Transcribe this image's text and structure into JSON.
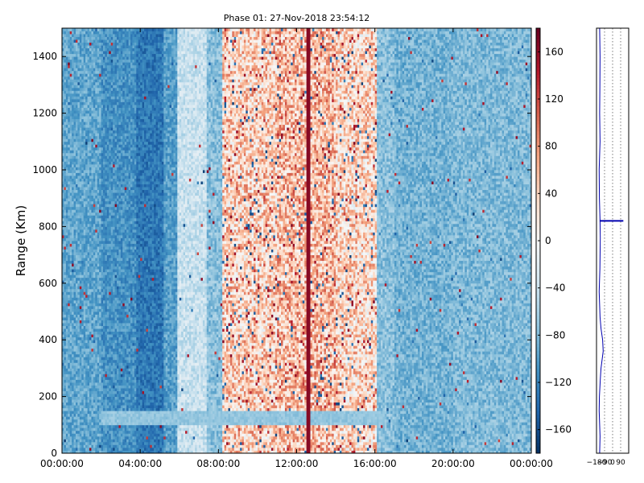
{
  "chart_data": [
    {
      "type": "heatmap",
      "title": "Phase 01: 27-Nov-2018 23:54:12",
      "xlabel": "",
      "ylabel": "Range (Km)",
      "x_tick_labels": [
        "00:00:00",
        "04:00:00",
        "08:00:00",
        "12:00:00",
        "16:00:00",
        "20:00:00",
        "00:00:00"
      ],
      "x_hours": [
        0,
        4,
        8,
        12,
        16,
        20,
        24
      ],
      "xlim_hours": [
        0,
        24
      ],
      "y_ticks": [
        0,
        200,
        400,
        600,
        800,
        1000,
        1200,
        1400
      ],
      "ylim": [
        0,
        1500
      ],
      "color_limits": [
        -180,
        180
      ],
      "colormap": "RdBu_r",
      "colorbar_ticks": [
        -160,
        -120,
        -80,
        -40,
        0,
        40,
        80,
        120,
        160
      ],
      "phase_profile_hours": [
        {
          "start": 0,
          "end": 2,
          "mean": -95
        },
        {
          "start": 2,
          "end": 3.8,
          "mean": -110
        },
        {
          "start": 3.8,
          "end": 5.2,
          "mean": -130
        },
        {
          "start": 5.2,
          "end": 5.9,
          "mean": -100
        },
        {
          "start": 5.9,
          "end": 7.4,
          "mean": -40
        },
        {
          "start": 7.4,
          "end": 8.2,
          "mean": -75
        },
        {
          "start": 8.2,
          "end": 11,
          "mean": 40
        },
        {
          "start": 11,
          "end": 14,
          "mean": 55
        },
        {
          "start": 14,
          "end": 16.1,
          "mean": 35
        },
        {
          "start": 16.1,
          "end": 17,
          "mean": -75
        },
        {
          "start": 17,
          "end": 20,
          "mean": -85
        },
        {
          "start": 20,
          "end": 24,
          "mean": -80
        }
      ],
      "hot_line_hours": 12.6,
      "horizontal_band": {
        "range_km": [
          100,
          150
        ],
        "hours": [
          2,
          16.5
        ],
        "mean": -70
      }
    },
    {
      "type": "line",
      "title": "",
      "xlabel": "",
      "ylabel": "",
      "x_tick_labels": [
        "−180",
        "−90",
        "0",
        "90"
      ],
      "x_ticks": [
        -180,
        -90,
        0,
        90
      ],
      "xlim": [
        -180,
        180
      ],
      "ylim": [
        0,
        1500
      ],
      "grid": true,
      "series": [
        {
          "color": "#0000b0",
          "points": [
            [
              -145,
              0
            ],
            [
              -140,
              60
            ],
            [
              -150,
              150
            ],
            [
              -148,
              200
            ],
            [
              -138,
              260
            ],
            [
              -130,
              300
            ],
            [
              -105,
              360
            ],
            [
              -112,
              400
            ],
            [
              -130,
              440
            ],
            [
              -140,
              480
            ],
            [
              -150,
              570
            ],
            [
              -142,
              650
            ],
            [
              -138,
              760
            ],
            [
              -140,
              820
            ],
            [
              -148,
              900
            ],
            [
              -150,
              1000
            ],
            [
              -140,
              1100
            ],
            [
              -145,
              1200
            ],
            [
              -142,
              1300
            ],
            [
              -140,
              1400
            ],
            [
              -145,
              1500
            ]
          ],
          "spike": {
            "range_km": 820,
            "x_to": 120
          }
        }
      ]
    }
  ]
}
